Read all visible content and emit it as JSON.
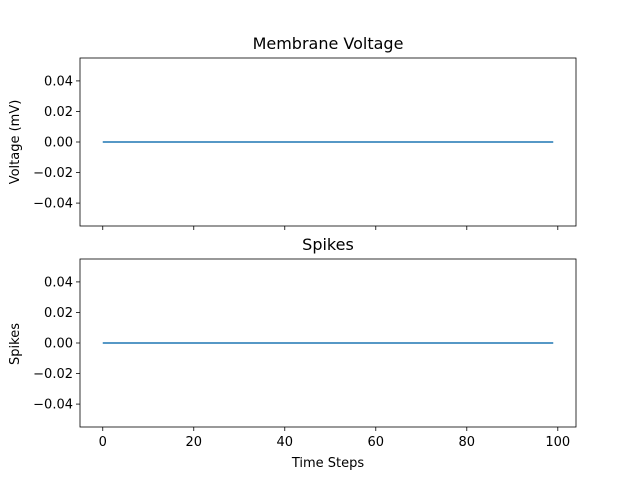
{
  "chart_data": [
    {
      "type": "line",
      "title": "Membrane Voltage",
      "xlabel": "",
      "ylabel": "Voltage (mV)",
      "xlim": [
        -5,
        104
      ],
      "ylim": [
        -0.055,
        0.055
      ],
      "x_ticks": [
        0,
        20,
        40,
        60,
        80,
        100
      ],
      "x_tick_labels_visible": false,
      "y_ticks": [
        0.04,
        0.02,
        0.0,
        -0.02,
        -0.04
      ],
      "y_tick_labels": [
        "0.04",
        "0.02",
        "0.00",
        "−0.02",
        "−0.04"
      ],
      "grid": false,
      "series": [
        {
          "color": "#1f77b4",
          "x_start": 0,
          "x_end": 99,
          "constant_value": 0
        }
      ]
    },
    {
      "type": "line",
      "title": "Spikes",
      "xlabel": "Time Steps",
      "ylabel": "Spikes",
      "xlim": [
        -5,
        104
      ],
      "ylim": [
        -0.055,
        0.055
      ],
      "x_ticks": [
        0,
        20,
        40,
        60,
        80,
        100
      ],
      "x_tick_labels": [
        "0",
        "20",
        "40",
        "60",
        "80",
        "100"
      ],
      "x_tick_labels_visible": true,
      "y_ticks": [
        0.04,
        0.02,
        0.0,
        -0.02,
        -0.04
      ],
      "y_tick_labels": [
        "0.04",
        "0.02",
        "0.00",
        "−0.02",
        "−0.04"
      ],
      "grid": false,
      "series": [
        {
          "color": "#1f77b4",
          "x_start": 0,
          "x_end": 99,
          "constant_value": 0
        }
      ]
    }
  ]
}
